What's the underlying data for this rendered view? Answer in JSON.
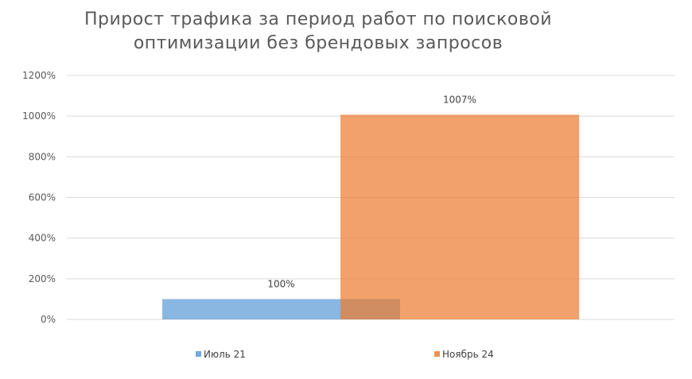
{
  "chart_data": {
    "type": "bar",
    "title": "Прирост трафика за период работ по поисковой оптимизации без брендовых запросов",
    "title_lines": [
      "Прирост трафика за период работ по поисковой",
      "оптимизации без брендовых запросов"
    ],
    "xlabel": "",
    "ylabel": "",
    "ylim": [
      0,
      1200
    ],
    "y_ticks": [
      0,
      200,
      400,
      600,
      800,
      1000,
      1200
    ],
    "y_tick_labels": [
      "0%",
      "200%",
      "400%",
      "600%",
      "800%",
      "1000%",
      "1200%"
    ],
    "grid": true,
    "legend_position": "bottom",
    "series": [
      {
        "name": "Июль 21",
        "values": [
          100
        ],
        "data_labels": [
          "100%"
        ],
        "color": "#5B9BD5"
      },
      {
        "name": "Ноябрь 24",
        "values": [
          1007
        ],
        "data_labels": [
          "1007%"
        ],
        "color": "#ED7D31"
      }
    ]
  }
}
